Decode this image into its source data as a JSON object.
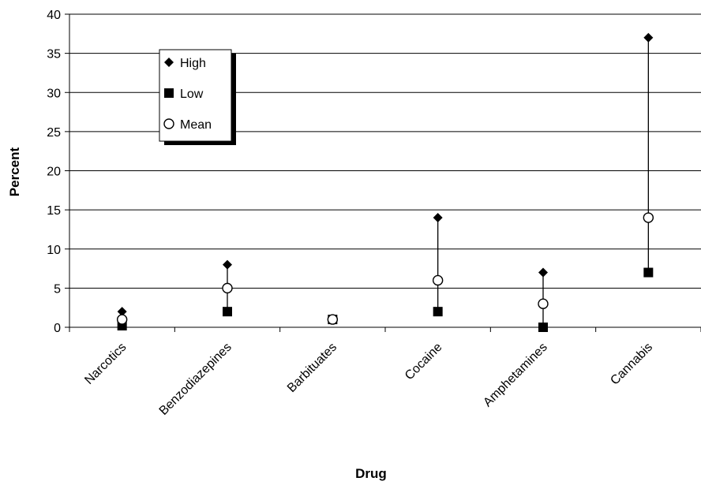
{
  "chart_data": {
    "type": "scatter",
    "title": "",
    "xlabel": "Drug",
    "ylabel": "Percent",
    "ylim": [
      0,
      40
    ],
    "yticks": [
      0,
      5,
      10,
      15,
      20,
      25,
      30,
      35,
      40
    ],
    "categories": [
      "Narcotics",
      "Benzodiazepines",
      "Barbituates",
      "Cocaine",
      "Amphetamines",
      "Cannabis"
    ],
    "series": [
      {
        "name": "High",
        "marker": "diamond",
        "values": [
          2,
          8,
          1,
          14,
          7,
          37
        ]
      },
      {
        "name": "Low",
        "marker": "square",
        "values": [
          0.2,
          2,
          1,
          2,
          0,
          7
        ]
      },
      {
        "name": "Mean",
        "marker": "circle",
        "values": [
          1,
          5,
          1,
          6,
          3,
          14
        ]
      }
    ],
    "grid": true,
    "legend_position": "top-left",
    "colors": {
      "marker": "#000000",
      "grid": "#000000",
      "legend_shadow": "#000000"
    }
  }
}
